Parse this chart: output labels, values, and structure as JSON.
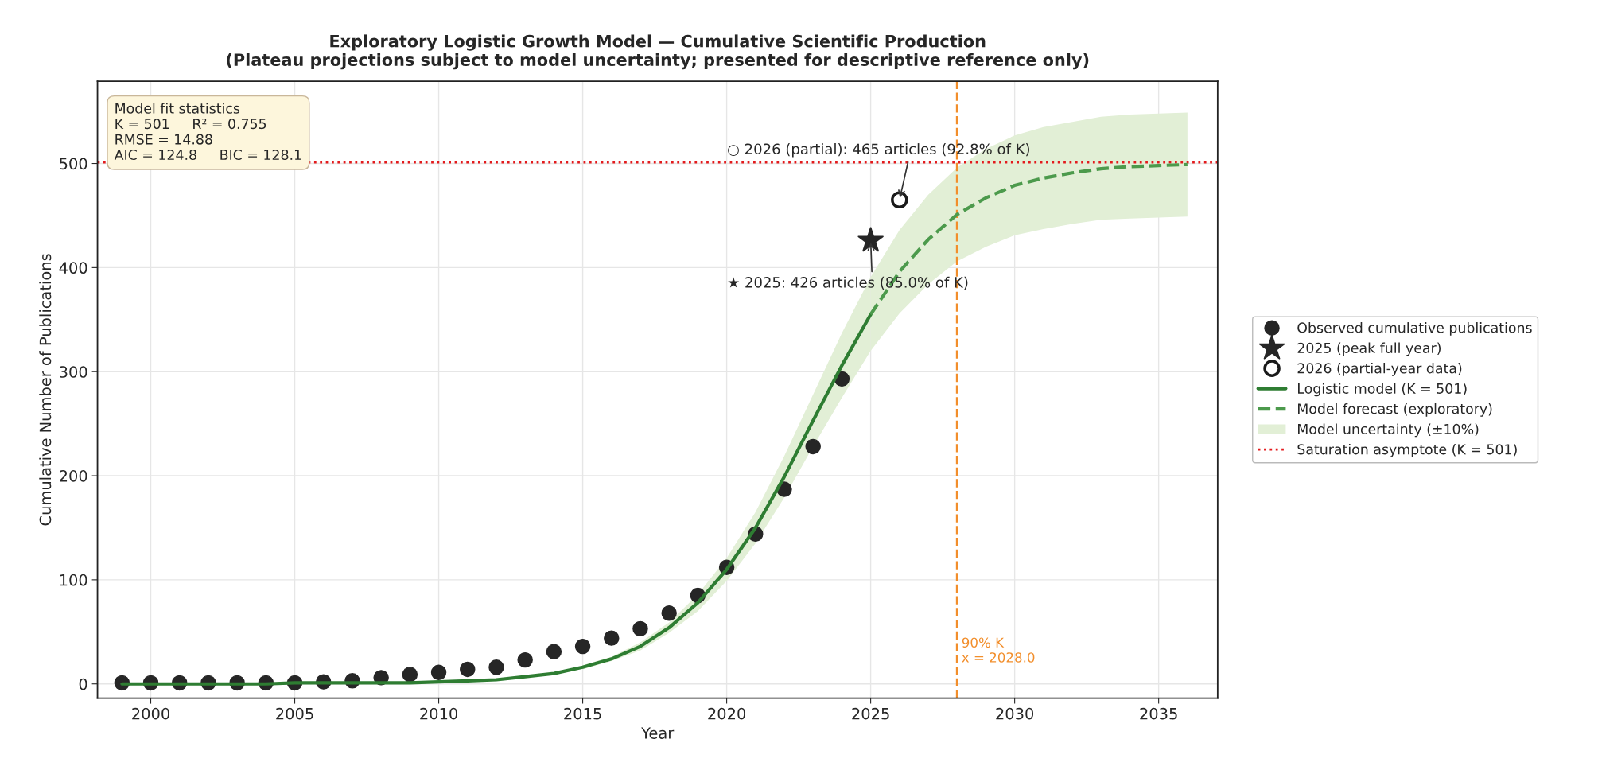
{
  "chart_data": {
    "type": "scatter",
    "title": "Exploratory Logistic Growth Model — Cumulative Scientific Production\n(Plateau projections subject to model uncertainty; presented for descriptive reference only)",
    "xlabel": "Year",
    "ylabel": "Cumulative Number of Publications",
    "xlim": [
      1998.15,
      2037.05
    ],
    "ylim": [
      -13.7,
      579
    ],
    "xticks": [
      2000,
      2005,
      2010,
      2015,
      2020,
      2025,
      2030,
      2035
    ],
    "yticks": [
      0,
      100,
      200,
      300,
      400,
      500
    ],
    "grid": true,
    "legend": "right",
    "series": [
      {
        "name": "Observed cumulative publications",
        "marker": "circle",
        "color": "#262626",
        "x": [
          1999,
          2000,
          2001,
          2002,
          2003,
          2004,
          2005,
          2006,
          2007,
          2008,
          2009,
          2010,
          2011,
          2012,
          2013,
          2014,
          2015,
          2016,
          2017,
          2018,
          2019,
          2020,
          2021,
          2022,
          2023,
          2024
        ],
        "values": [
          1,
          1,
          1,
          1,
          1,
          1,
          1,
          2,
          3,
          6,
          9,
          11,
          14,
          16,
          23,
          31,
          36,
          44,
          53,
          68,
          85,
          112,
          144,
          187,
          228,
          293
        ]
      },
      {
        "name": "2025 (peak full year)",
        "marker": "star",
        "color": "#262626",
        "x": [
          2025
        ],
        "values": [
          426
        ]
      },
      {
        "name": "2026 (partial-year data)",
        "marker": "circle",
        "color": "#1a1a1a",
        "colors": [
          "#ffffff"
        ],
        "x": [
          2026
        ],
        "values": [
          465
        ]
      },
      {
        "name": "Logistic model (K = 501)",
        "type": "line",
        "line_style": "solid",
        "color": "#2e7d32",
        "x": [
          1999,
          2000,
          2001,
          2002,
          2003,
          2004,
          2005,
          2006,
          2007,
          2008,
          2009,
          2010,
          2011,
          2012,
          2013,
          2014,
          2015,
          2016,
          2017,
          2018,
          2019,
          2020,
          2021,
          2022,
          2023,
          2024,
          2025
        ],
        "values": [
          0,
          0,
          0,
          0,
          0,
          0,
          1,
          1,
          1,
          1,
          1,
          2,
          3,
          4,
          7,
          10,
          16,
          24,
          36,
          54,
          78,
          110,
          150,
          199,
          253,
          306,
          355
        ],
        "lower": [
          null,
          null,
          null,
          null,
          null,
          null,
          null,
          null,
          null,
          null,
          null,
          null,
          null,
          null,
          null,
          null,
          14,
          22,
          32,
          49,
          70,
          99,
          135,
          179,
          228,
          275,
          320
        ],
        "upper": [
          null,
          null,
          null,
          null,
          null,
          null,
          null,
          null,
          null,
          null,
          null,
          null,
          null,
          null,
          null,
          null,
          18,
          26,
          40,
          59,
          86,
          121,
          165,
          219,
          278,
          337,
          391
        ]
      },
      {
        "name": "Model forecast (exploratory)",
        "type": "line",
        "line_style": "dashed",
        "color": "#4c9a4c",
        "x": [
          2025,
          2026,
          2027,
          2028,
          2029,
          2030,
          2031,
          2032,
          2033,
          2034,
          2035,
          2036
        ],
        "values": [
          355,
          396,
          427,
          451,
          467,
          479,
          486,
          491,
          495,
          497,
          498,
          499
        ],
        "lower": [
          320,
          356,
          384,
          406,
          420,
          431,
          437,
          442,
          446,
          447,
          448,
          449
        ],
        "upper": [
          391,
          436,
          470,
          496,
          514,
          527,
          535,
          540,
          545,
          547,
          548,
          549
        ]
      },
      {
        "name": "Model uncertainty (±10%)",
        "type": "area",
        "color": "#e2efd6"
      }
    ],
    "ref_lines": [
      {
        "axis": "y",
        "value": 501,
        "label": "Saturation asymptote (K = 501)",
        "color": "#e31a1c",
        "line_style": "dotted"
      },
      {
        "axis": "x",
        "value": 2028.0,
        "label": "90% K\nx = 2028.0",
        "color": "#f28e2b",
        "line_style": "dashed"
      }
    ],
    "annotations": [
      "Model fit statistics\nK = 501     R² = 0.755\nRMSE = 14.88\nAIC = 124.8     BIC = 128.1",
      {
        "text": "○ 2026 (partial): 465 articles (92.8% of K)",
        "x": 2026,
        "y": 465
      },
      {
        "text": "★ 2025: 426 articles (85.0% of K)",
        "x": 2025,
        "y": 426
      }
    ]
  }
}
